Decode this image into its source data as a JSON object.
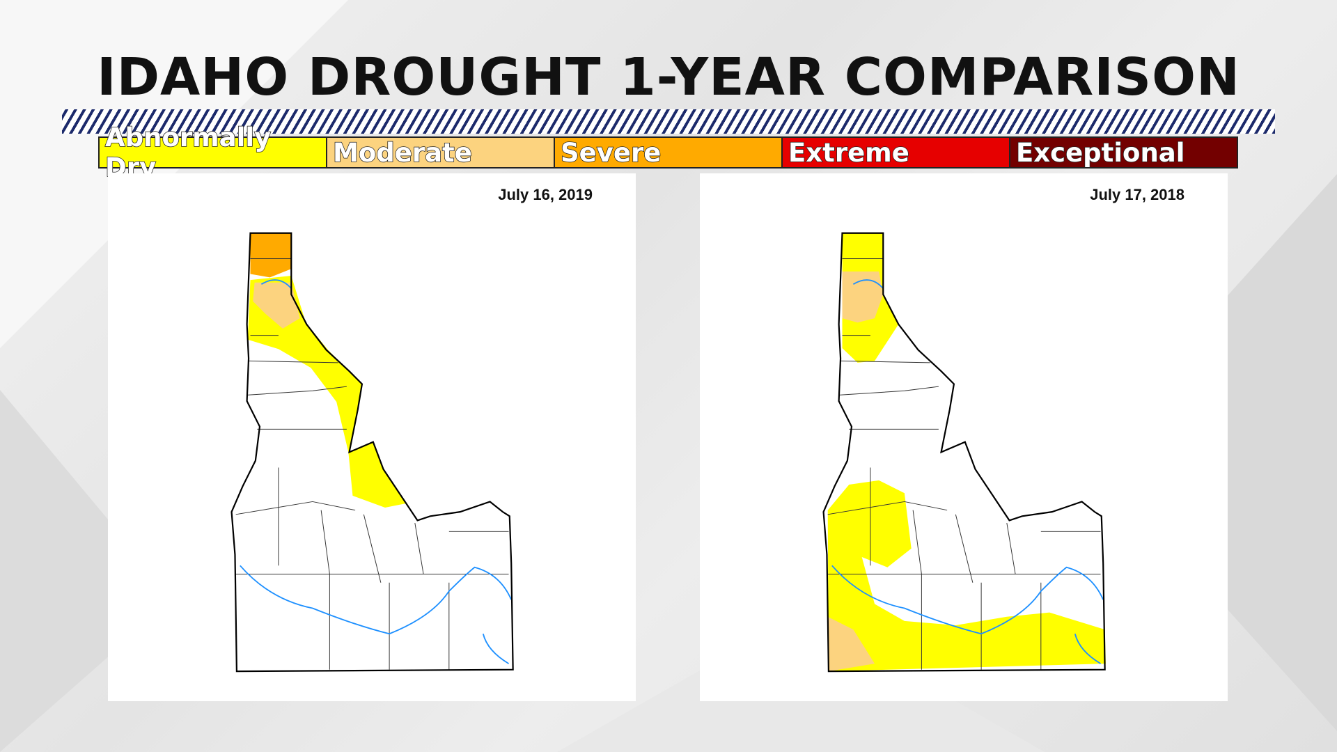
{
  "header": {
    "title": "IDAHO DROUGHT 1-YEAR COMPARISON"
  },
  "legend": [
    {
      "label": "Abnormally Dry",
      "color": "#ffff00"
    },
    {
      "label": "Moderate",
      "color": "#fcd37f"
    },
    {
      "label": "Severe",
      "color": "#ffaa00"
    },
    {
      "label": "Extreme",
      "color": "#e60000"
    },
    {
      "label": "Exceptional",
      "color": "#730000"
    }
  ],
  "panels": [
    {
      "date": "July 16, 2019"
    },
    {
      "date": "July 17, 2018"
    }
  ]
}
